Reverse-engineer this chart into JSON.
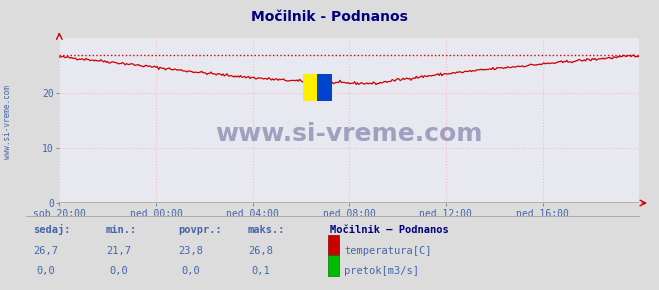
{
  "title": "Močilnik - Podnanos",
  "bg_color": "#dcdcdc",
  "plot_bg_color": "#e8e8f0",
  "grid_color": "#ffbbbb",
  "x_labels": [
    "sob 20:00",
    "ned 00:00",
    "ned 04:00",
    "ned 08:00",
    "ned 12:00",
    "ned 16:00"
  ],
  "x_ticks": [
    0,
    72,
    144,
    216,
    288,
    360
  ],
  "x_max": 432,
  "y_min": 0,
  "y_max": 30,
  "y_ticks": [
    0,
    10,
    20
  ],
  "temp_color": "#cc0000",
  "pretok_color": "#00bb00",
  "max_line_color": "#cc0000",
  "max_value": 26.8,
  "watermark_text": "www.si-vreme.com",
  "watermark_color": "#9999bb",
  "left_label": "www.si-vreme.com",
  "left_label_color": "#4466aa",
  "stats_labels": [
    "sedaj:",
    "min.:",
    "povpr.:",
    "maks.:"
  ],
  "stats_temp": [
    "26,7",
    "21,7",
    "23,8",
    "26,8"
  ],
  "stats_pretok": [
    "0,0",
    "0,0",
    "0,0",
    "0,1"
  ],
  "legend_title": "Močilnik – Podnanos",
  "legend_temp_label": "temperatura[C]",
  "legend_pretok_label": "pretok[m3/s]",
  "title_color": "#000080",
  "axis_color": "#cc0000",
  "tick_color": "#4466aa",
  "blue_color": "#4466aa"
}
